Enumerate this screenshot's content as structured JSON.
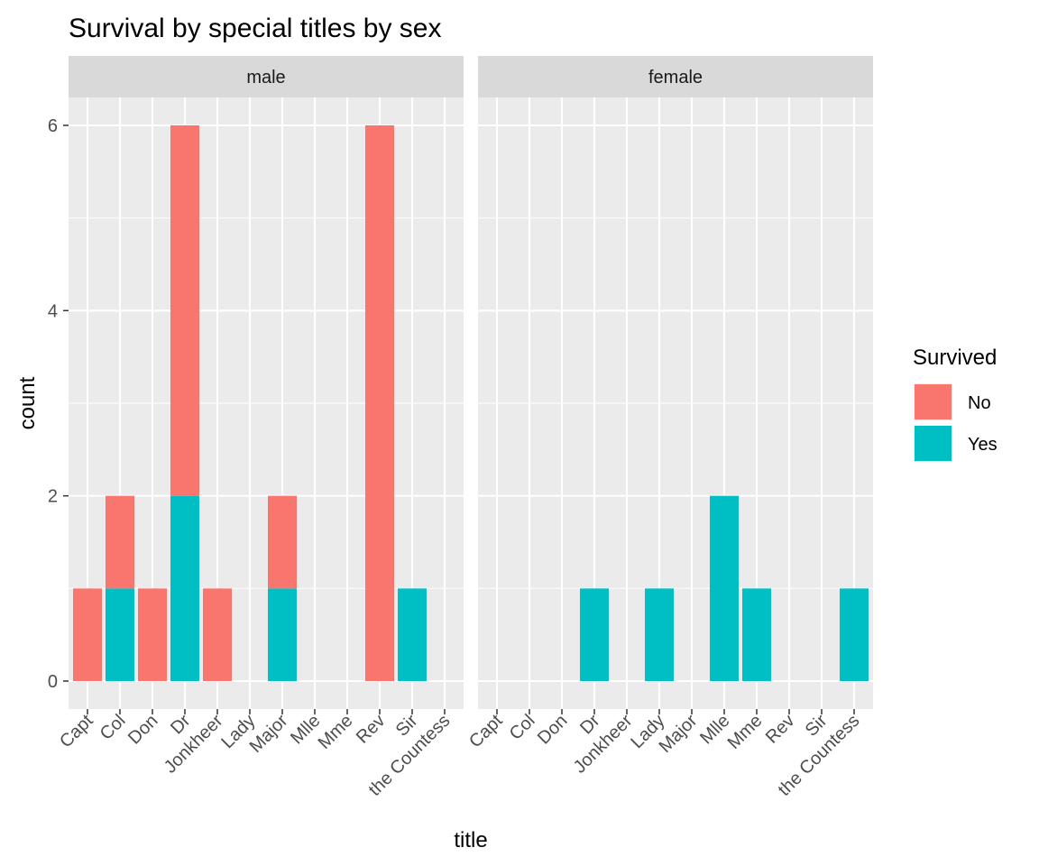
{
  "chart_data": {
    "type": "bar",
    "stacked": true,
    "title": "Survival by special titles by sex",
    "xlabel": "title",
    "ylabel": "count",
    "ylim": [
      -0.3,
      6.3
    ],
    "yticks": [
      0,
      2,
      4,
      6
    ],
    "grid": true,
    "categories": [
      "Capt",
      "Col",
      "Don",
      "Dr",
      "Jonkheer",
      "Lady",
      "Major",
      "Mlle",
      "Mme",
      "Rev",
      "Sir",
      "the Countess"
    ],
    "legend": {
      "title": "Survived",
      "position": "right",
      "entries": [
        {
          "name": "No",
          "color": "#F8766D"
        },
        {
          "name": "Yes",
          "color": "#00BFC4"
        }
      ]
    },
    "facets": [
      {
        "label": "male",
        "series": [
          {
            "name": "No",
            "values": [
              1,
              1,
              1,
              4,
              1,
              0,
              1,
              0,
              0,
              6,
              0,
              0
            ]
          },
          {
            "name": "Yes",
            "values": [
              0,
              1,
              0,
              2,
              0,
              0,
              1,
              0,
              0,
              0,
              1,
              0
            ]
          }
        ]
      },
      {
        "label": "female",
        "series": [
          {
            "name": "No",
            "values": [
              0,
              0,
              0,
              0,
              0,
              0,
              0,
              0,
              0,
              0,
              0,
              0
            ]
          },
          {
            "name": "Yes",
            "values": [
              0,
              0,
              0,
              1,
              0,
              1,
              0,
              2,
              1,
              0,
              0,
              1
            ]
          }
        ]
      }
    ]
  }
}
